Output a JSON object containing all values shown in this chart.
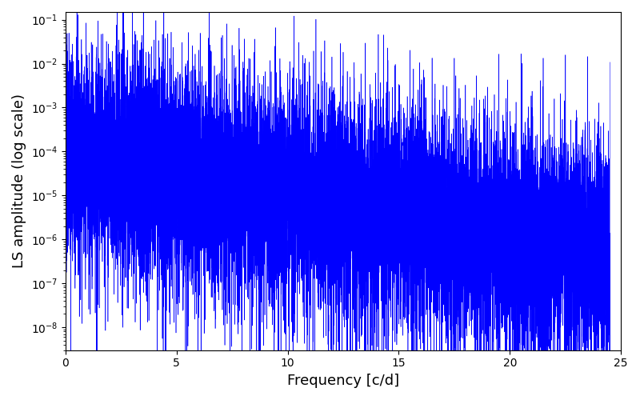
{
  "title": "",
  "xlabel": "Frequency [c/d]",
  "ylabel": "LS amplitude (log scale)",
  "xlim": [
    0,
    25
  ],
  "ylim": [
    3e-09,
    0.15
  ],
  "line_color": "#0000ff",
  "line_width": 0.4,
  "freq_max": 24.5,
  "n_points": 15000,
  "seed": 7,
  "background_color": "#ffffff",
  "figsize": [
    8.0,
    5.0
  ],
  "dpi": 100
}
